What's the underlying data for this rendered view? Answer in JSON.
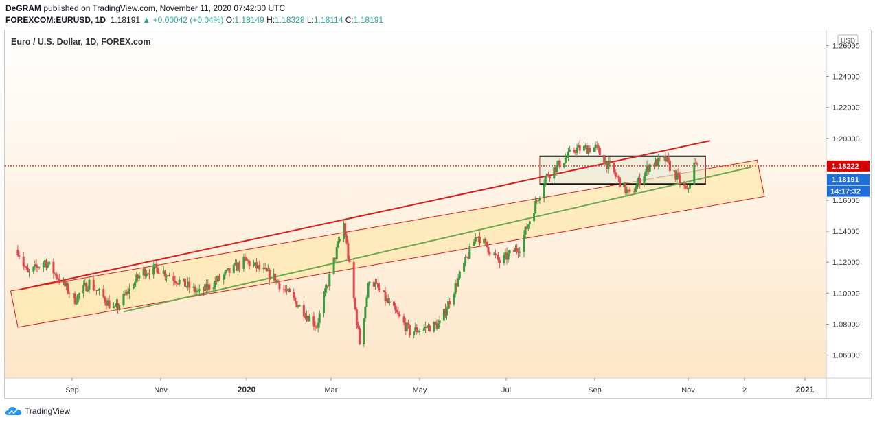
{
  "header": {
    "author": "DeGRAM",
    "published_text": "published on TradingView.com, November 11, 2020 07:42:30 UTC",
    "symbol": "FOREXCOM:EURUSD, 1D",
    "price": "1.18191",
    "change": "+0.00042 (+0.04%)",
    "o_label": "O:",
    "o_value": "1.18149",
    "h_label": "H:",
    "h_value": "1.18328",
    "l_label": "L:",
    "l_value": "1.18114",
    "c_label": "C:",
    "c_value": "1.18191"
  },
  "footer": {
    "brand": "TradingView"
  },
  "colors": {
    "up": "#26a69a",
    "down": "#ef5350",
    "candle_up": "#3f9a3f",
    "candle_down": "#e0474c",
    "channel_fill": "#fde8b0",
    "channel_line": "#d81b1b",
    "support_line": "#6aa84f",
    "level_line": "#e53935",
    "price_badge": "#1e6fd9",
    "level_badge": "#d50000"
  },
  "chart_data": {
    "type": "candlestick",
    "instrument": "Euro / U.S. Dollar, 1D, FOREX.com",
    "currency": "USD",
    "ylim": [
      1.05,
      1.27
    ],
    "y_ticks": [
      "1.26000",
      "1.24000",
      "1.22000",
      "1.20000",
      "1.18000",
      "1.16000",
      "1.14000",
      "1.12000",
      "1.10000",
      "1.08000",
      "1.06000"
    ],
    "x_ticks": [
      "Sep",
      "Nov",
      "2020",
      "Mar",
      "May",
      "Jul",
      "Sep",
      "Nov",
      "2",
      "2021"
    ],
    "x_ticks_bold": [
      "2020",
      "2021"
    ],
    "horizontal_level": {
      "value": 1.18222,
      "label": "1.18222"
    },
    "last_price": {
      "value": 1.18191,
      "label": "1.18191"
    },
    "countdown": "14:17:32",
    "key_prices": [
      {
        "date": "2019-07-25",
        "close": 1.128
      },
      {
        "date": "2019-08-01",
        "close": 1.112
      },
      {
        "date": "2019-08-13",
        "close": 1.121
      },
      {
        "date": "2019-09-03",
        "close": 1.096
      },
      {
        "date": "2019-09-13",
        "close": 1.107
      },
      {
        "date": "2019-10-01",
        "close": 1.089
      },
      {
        "date": "2019-10-20",
        "close": 1.114
      },
      {
        "date": "2019-10-31",
        "close": 1.116
      },
      {
        "date": "2019-11-29",
        "close": 1.1
      },
      {
        "date": "2019-12-31",
        "close": 1.121
      },
      {
        "date": "2020-01-20",
        "close": 1.11
      },
      {
        "date": "2020-02-19",
        "close": 1.079
      },
      {
        "date": "2020-03-09",
        "close": 1.145
      },
      {
        "date": "2020-03-20",
        "close": 1.068
      },
      {
        "date": "2020-03-27",
        "close": 1.11
      },
      {
        "date": "2020-04-24",
        "close": 1.075
      },
      {
        "date": "2020-05-15",
        "close": 1.08
      },
      {
        "date": "2020-06-10",
        "close": 1.138
      },
      {
        "date": "2020-06-26",
        "close": 1.12
      },
      {
        "date": "2020-07-10",
        "close": 1.13
      },
      {
        "date": "2020-07-28",
        "close": 1.175
      },
      {
        "date": "2020-08-18",
        "close": 1.193
      },
      {
        "date": "2020-09-01",
        "close": 1.194
      },
      {
        "date": "2020-09-25",
        "close": 1.163
      },
      {
        "date": "2020-10-09",
        "close": 1.183
      },
      {
        "date": "2020-10-20",
        "close": 1.186
      },
      {
        "date": "2020-11-04",
        "close": 1.165
      },
      {
        "date": "2020-11-09",
        "close": 1.183
      },
      {
        "date": "2020-11-11",
        "close": 1.1819
      }
    ],
    "drawings": {
      "channel": {
        "from": {
          "date": "2019-07-20",
          "price": 1.1015
        },
        "to": {
          "date": "2020-12-23",
          "price": 1.186
        },
        "width": 0.0235
      },
      "upper_line": {
        "from": {
          "date": "2019-07-27",
          "price": 1.1025
        },
        "to": {
          "date": "2020-11-20",
          "price": 1.1985
        }
      },
      "lower_line": {
        "from": {
          "date": "2019-10-07",
          "price": 1.088
        },
        "to": {
          "date": "2020-12-19",
          "price": 1.1815
        }
      },
      "range_box": {
        "from": {
          "date": "2020-07-24",
          "price": 1.1885
        },
        "to": {
          "date": "2020-11-17",
          "price": 1.1705
        }
      }
    }
  }
}
